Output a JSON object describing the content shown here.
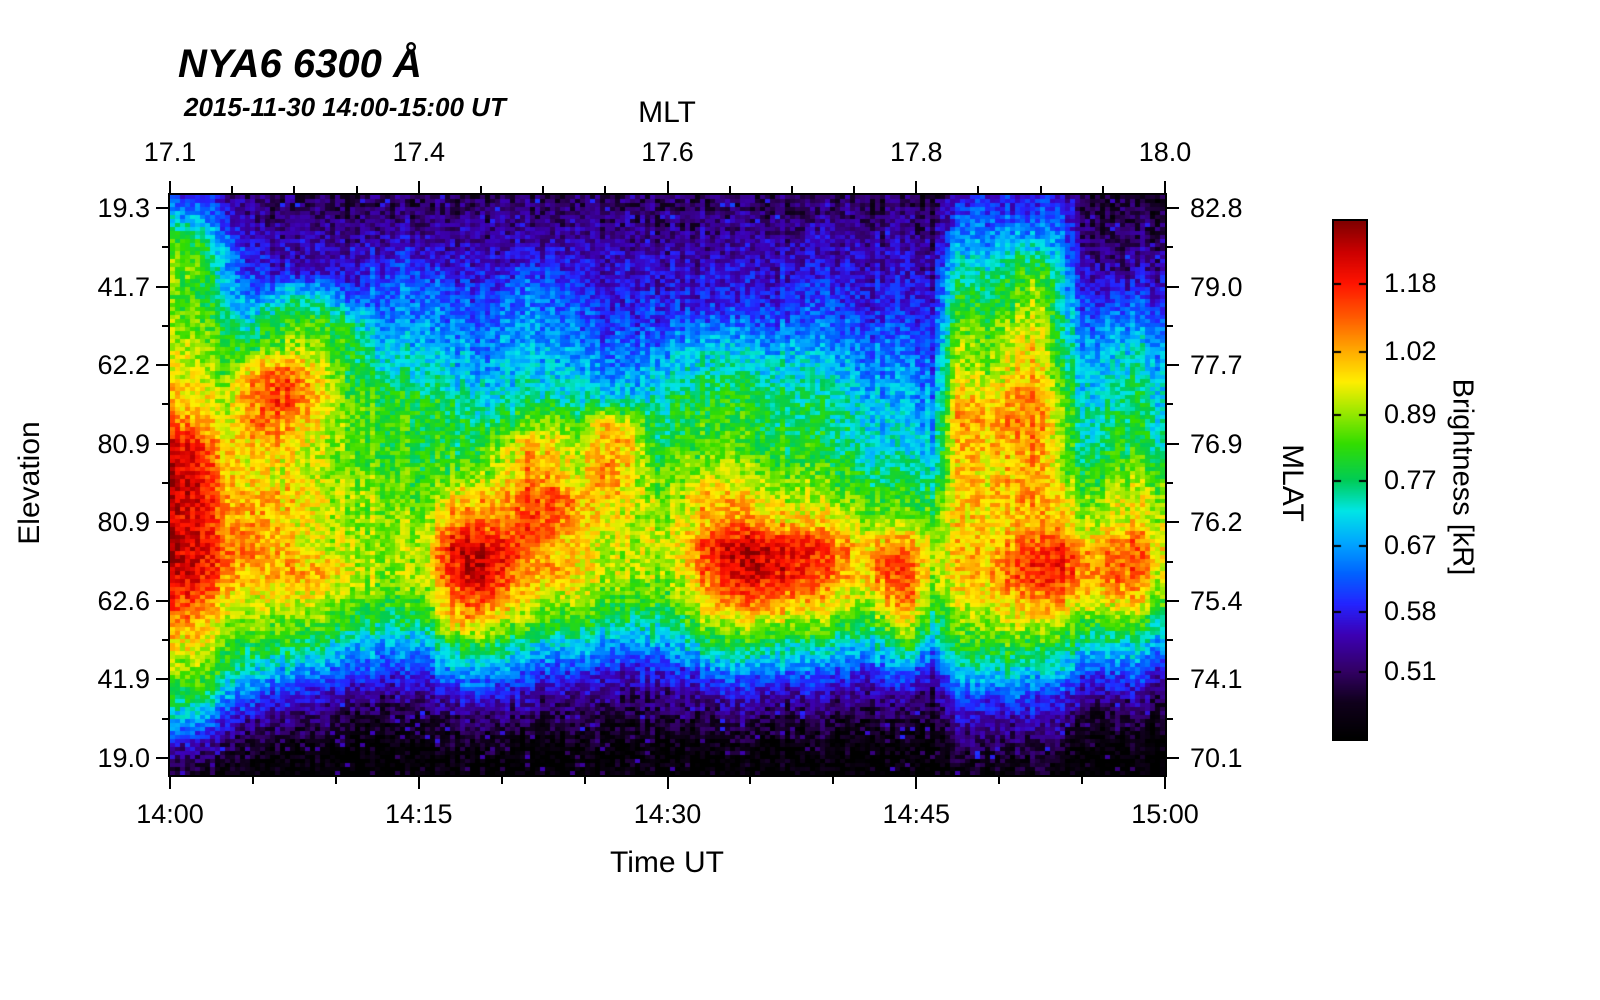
{
  "chart_data": {
    "type": "heatmap",
    "title": "NYA6 6300 Å",
    "subtitle": "2015-11-30 14:00-15:00 UT",
    "x_axis": {
      "label": "Time UT",
      "ticks": [
        "14:00",
        "14:15",
        "14:30",
        "14:45",
        "15:00"
      ]
    },
    "x_axis_top": {
      "label": "MLT",
      "ticks": [
        "17.1",
        "17.4",
        "17.6",
        "17.8",
        "18.0"
      ]
    },
    "y_axis_left": {
      "label": "Elevation",
      "ticks": [
        "19.3",
        "41.7",
        "62.2",
        "80.9",
        "80.9",
        "62.6",
        "41.9",
        "19.0"
      ]
    },
    "y_axis_right": {
      "label": "MLAT",
      "ticks": [
        "82.8",
        "79.0",
        "77.7",
        "76.9",
        "76.2",
        "75.4",
        "74.1",
        "70.1"
      ]
    },
    "colorbar": {
      "label": "Brightness [kR]",
      "tick_values": [
        "1.18",
        "1.02",
        "0.89",
        "0.77",
        "0.67",
        "0.58",
        "0.51"
      ],
      "scale": "log",
      "vmin_kR": 0.44,
      "vmax_kR": 1.35,
      "colormap_stops": [
        [
          0.0,
          "#000000"
        ],
        [
          0.07,
          "#10001c"
        ],
        [
          0.13,
          "#320064"
        ],
        [
          0.2,
          "#3c00b4"
        ],
        [
          0.26,
          "#2424ff"
        ],
        [
          0.32,
          "#0064ff"
        ],
        [
          0.38,
          "#00a8ff"
        ],
        [
          0.44,
          "#00e6e6"
        ],
        [
          0.5,
          "#00cc55"
        ],
        [
          0.57,
          "#33dd00"
        ],
        [
          0.63,
          "#99e800"
        ],
        [
          0.69,
          "#ffee00"
        ],
        [
          0.75,
          "#ffaa00"
        ],
        [
          0.81,
          "#ff6000"
        ],
        [
          0.88,
          "#ff1400"
        ],
        [
          0.94,
          "#cc0000"
        ],
        [
          1.0,
          "#800000"
        ]
      ]
    },
    "grid": {
      "cols": 40,
      "rows": 24,
      "col_span_minutes": 1.5,
      "row_order": "top-to-bottom",
      "values_kR": [
        [
          0.6,
          0.58,
          0.55,
          0.52,
          0.5,
          0.5,
          0.5,
          0.5,
          0.5,
          0.5,
          0.5,
          0.5,
          0.5,
          0.5,
          0.5,
          0.5,
          0.5,
          0.5,
          0.5,
          0.5,
          0.5,
          0.5,
          0.5,
          0.5,
          0.5,
          0.5,
          0.5,
          0.5,
          0.5,
          0.5,
          0.48,
          0.58,
          0.58,
          0.58,
          0.58,
          0.58,
          0.48,
          0.48,
          0.48,
          0.48
        ],
        [
          0.72,
          0.68,
          0.6,
          0.55,
          0.52,
          0.52,
          0.52,
          0.52,
          0.53,
          0.53,
          0.52,
          0.52,
          0.52,
          0.52,
          0.52,
          0.52,
          0.52,
          0.52,
          0.52,
          0.52,
          0.52,
          0.52,
          0.52,
          0.52,
          0.52,
          0.52,
          0.52,
          0.52,
          0.52,
          0.52,
          0.5,
          0.62,
          0.62,
          0.63,
          0.62,
          0.62,
          0.5,
          0.5,
          0.5,
          0.5
        ],
        [
          0.85,
          0.8,
          0.68,
          0.58,
          0.55,
          0.54,
          0.54,
          0.54,
          0.56,
          0.57,
          0.56,
          0.54,
          0.54,
          0.54,
          0.55,
          0.55,
          0.54,
          0.54,
          0.54,
          0.54,
          0.54,
          0.54,
          0.54,
          0.54,
          0.54,
          0.55,
          0.55,
          0.54,
          0.54,
          0.54,
          0.52,
          0.68,
          0.68,
          0.7,
          0.72,
          0.66,
          0.52,
          0.52,
          0.52,
          0.52
        ],
        [
          0.88,
          0.82,
          0.7,
          0.6,
          0.57,
          0.56,
          0.56,
          0.57,
          0.6,
          0.62,
          0.6,
          0.58,
          0.57,
          0.58,
          0.6,
          0.6,
          0.57,
          0.56,
          0.56,
          0.56,
          0.56,
          0.56,
          0.56,
          0.56,
          0.56,
          0.57,
          0.57,
          0.56,
          0.56,
          0.56,
          0.54,
          0.75,
          0.74,
          0.78,
          0.85,
          0.7,
          0.54,
          0.54,
          0.54,
          0.54
        ],
        [
          0.85,
          0.8,
          0.72,
          0.65,
          0.7,
          0.74,
          0.7,
          0.62,
          0.62,
          0.64,
          0.64,
          0.62,
          0.6,
          0.62,
          0.64,
          0.63,
          0.6,
          0.58,
          0.58,
          0.58,
          0.58,
          0.58,
          0.58,
          0.58,
          0.58,
          0.6,
          0.6,
          0.58,
          0.58,
          0.58,
          0.56,
          0.8,
          0.78,
          0.82,
          0.9,
          0.72,
          0.58,
          0.6,
          0.6,
          0.58
        ],
        [
          0.88,
          0.84,
          0.78,
          0.72,
          0.8,
          0.85,
          0.8,
          0.78,
          0.66,
          0.66,
          0.66,
          0.64,
          0.62,
          0.64,
          0.66,
          0.65,
          0.62,
          0.6,
          0.6,
          0.6,
          0.62,
          0.63,
          0.63,
          0.62,
          0.62,
          0.63,
          0.62,
          0.6,
          0.6,
          0.6,
          0.58,
          0.85,
          0.82,
          0.88,
          0.95,
          0.75,
          0.62,
          0.65,
          0.66,
          0.62
        ],
        [
          0.92,
          0.88,
          0.82,
          0.8,
          0.85,
          0.9,
          0.85,
          0.82,
          0.72,
          0.7,
          0.7,
          0.68,
          0.65,
          0.66,
          0.68,
          0.68,
          0.65,
          0.63,
          0.63,
          0.64,
          0.68,
          0.7,
          0.7,
          0.68,
          0.68,
          0.68,
          0.66,
          0.64,
          0.63,
          0.63,
          0.6,
          0.9,
          0.85,
          0.92,
          0.98,
          0.78,
          0.66,
          0.7,
          0.72,
          0.65
        ],
        [
          0.95,
          0.9,
          0.85,
          1.0,
          1.1,
          1.05,
          0.9,
          0.8,
          0.76,
          0.74,
          0.72,
          0.7,
          0.68,
          0.68,
          0.7,
          0.7,
          0.68,
          0.66,
          0.66,
          0.68,
          0.72,
          0.75,
          0.74,
          0.72,
          0.72,
          0.72,
          0.7,
          0.66,
          0.66,
          0.66,
          0.62,
          0.92,
          0.88,
          0.95,
          1.0,
          0.8,
          0.68,
          0.72,
          0.75,
          0.68
        ],
        [
          1.0,
          0.95,
          0.9,
          1.05,
          1.15,
          1.1,
          0.95,
          0.85,
          0.82,
          0.8,
          0.8,
          0.76,
          0.72,
          0.72,
          0.74,
          0.74,
          0.72,
          0.7,
          0.7,
          0.72,
          0.78,
          0.8,
          0.8,
          0.78,
          0.76,
          0.76,
          0.74,
          0.7,
          0.68,
          0.68,
          0.64,
          1.0,
          0.95,
          1.02,
          1.05,
          0.85,
          0.7,
          0.75,
          0.78,
          0.7
        ],
        [
          1.1,
          1.0,
          0.92,
          1.05,
          1.1,
          1.0,
          0.92,
          0.86,
          0.84,
          0.82,
          0.8,
          0.78,
          0.76,
          0.78,
          0.85,
          0.9,
          0.8,
          1.0,
          0.92,
          0.75,
          0.8,
          0.82,
          0.82,
          0.8,
          0.78,
          0.78,
          0.76,
          0.72,
          0.7,
          0.7,
          0.66,
          1.05,
          1.0,
          1.05,
          1.08,
          0.88,
          0.72,
          0.78,
          0.8,
          0.72
        ],
        [
          1.25,
          1.15,
          1.0,
          1.0,
          1.0,
          0.95,
          0.9,
          0.86,
          0.84,
          0.82,
          0.8,
          0.8,
          0.8,
          0.9,
          1.0,
          0.98,
          0.9,
          1.02,
          1.0,
          0.8,
          0.82,
          0.84,
          0.84,
          0.82,
          0.8,
          0.8,
          0.78,
          0.74,
          0.72,
          0.72,
          0.68,
          1.0,
          0.98,
          1.02,
          1.05,
          0.88,
          0.74,
          0.8,
          0.82,
          0.74
        ],
        [
          1.3,
          1.2,
          1.02,
          0.95,
          0.95,
          0.92,
          0.9,
          0.88,
          0.86,
          0.84,
          0.82,
          0.84,
          0.86,
          0.92,
          1.05,
          1.0,
          0.9,
          1.08,
          0.95,
          0.85,
          0.88,
          0.9,
          0.9,
          0.88,
          0.86,
          0.85,
          0.82,
          0.78,
          0.76,
          0.76,
          0.72,
          0.98,
          0.95,
          1.0,
          1.02,
          0.9,
          0.78,
          0.85,
          0.88,
          0.8
        ],
        [
          1.3,
          1.2,
          1.05,
          1.0,
          1.02,
          0.98,
          0.92,
          0.9,
          0.88,
          0.86,
          0.85,
          0.95,
          1.0,
          1.0,
          1.1,
          1.15,
          1.0,
          1.0,
          0.95,
          0.88,
          0.9,
          1.05,
          1.0,
          0.95,
          0.92,
          0.9,
          0.88,
          0.84,
          0.82,
          0.82,
          0.78,
          1.0,
          0.98,
          1.02,
          1.05,
          0.95,
          0.85,
          0.92,
          0.95,
          0.88
        ],
        [
          1.25,
          1.18,
          1.05,
          1.05,
          1.0,
          0.95,
          0.92,
          0.9,
          0.88,
          0.88,
          0.9,
          1.05,
          1.1,
          1.05,
          1.15,
          1.1,
          0.98,
          0.95,
          0.92,
          0.9,
          0.92,
          1.0,
          1.05,
          1.05,
          1.0,
          0.98,
          0.95,
          0.9,
          0.88,
          0.88,
          0.84,
          0.98,
          0.96,
          1.0,
          1.0,
          0.98,
          0.9,
          0.95,
          0.98,
          0.9
        ],
        [
          1.3,
          1.22,
          1.1,
          1.08,
          1.02,
          0.96,
          0.92,
          0.92,
          0.9,
          0.9,
          0.92,
          1.2,
          1.28,
          1.18,
          1.1,
          1.0,
          0.95,
          0.92,
          0.92,
          0.92,
          0.95,
          1.15,
          1.25,
          1.28,
          1.25,
          1.18,
          1.12,
          0.98,
          1.05,
          1.08,
          0.88,
          1.0,
          0.98,
          1.05,
          1.12,
          1.15,
          1.0,
          1.08,
          1.12,
          0.95
        ],
        [
          1.28,
          1.2,
          1.08,
          1.0,
          1.0,
          1.02,
          1.0,
          0.94,
          0.9,
          0.9,
          0.92,
          1.18,
          1.28,
          1.15,
          1.0,
          1.05,
          0.95,
          0.92,
          0.9,
          0.9,
          0.92,
          1.1,
          1.22,
          1.25,
          1.22,
          1.15,
          1.08,
          0.95,
          1.1,
          1.15,
          0.88,
          0.98,
          1.0,
          1.1,
          1.18,
          1.18,
          1.02,
          1.12,
          1.1,
          0.92
        ],
        [
          1.15,
          1.1,
          1.0,
          0.95,
          0.95,
          0.95,
          0.92,
          0.88,
          0.85,
          0.84,
          0.86,
          1.05,
          1.15,
          1.05,
          0.95,
          0.92,
          0.9,
          0.86,
          0.84,
          0.84,
          0.86,
          1.0,
          1.08,
          1.1,
          1.08,
          1.02,
          0.98,
          0.9,
          1.0,
          1.1,
          0.82,
          0.95,
          0.95,
          1.0,
          1.05,
          1.05,
          0.95,
          1.0,
          1.0,
          0.85
        ],
        [
          1.05,
          1.0,
          0.92,
          0.88,
          0.88,
          0.86,
          0.84,
          0.8,
          0.78,
          0.77,
          0.78,
          1.0,
          1.0,
          0.9,
          0.85,
          0.82,
          0.8,
          0.77,
          0.75,
          0.75,
          0.78,
          0.88,
          0.92,
          0.92,
          0.9,
          0.88,
          0.85,
          0.8,
          0.85,
          0.95,
          0.74,
          0.88,
          0.88,
          0.92,
          0.92,
          0.9,
          0.82,
          0.85,
          0.85,
          0.75
        ],
        [
          0.95,
          0.92,
          0.85,
          0.8,
          0.78,
          0.76,
          0.74,
          0.7,
          0.68,
          0.67,
          0.68,
          0.78,
          0.8,
          0.76,
          0.72,
          0.7,
          0.68,
          0.66,
          0.65,
          0.66,
          0.68,
          0.75,
          0.78,
          0.76,
          0.75,
          0.73,
          0.72,
          0.68,
          0.72,
          0.8,
          0.64,
          0.8,
          0.8,
          0.82,
          0.8,
          0.78,
          0.7,
          0.72,
          0.72,
          0.64
        ],
        [
          0.88,
          0.85,
          0.78,
          0.72,
          0.68,
          0.66,
          0.64,
          0.61,
          0.6,
          0.59,
          0.6,
          0.66,
          0.68,
          0.65,
          0.62,
          0.6,
          0.59,
          0.58,
          0.57,
          0.58,
          0.59,
          0.63,
          0.65,
          0.64,
          0.63,
          0.62,
          0.61,
          0.59,
          0.61,
          0.62,
          0.56,
          0.7,
          0.7,
          0.72,
          0.7,
          0.68,
          0.6,
          0.62,
          0.62,
          0.56
        ],
        [
          0.8,
          0.76,
          0.68,
          0.62,
          0.58,
          0.56,
          0.55,
          0.53,
          0.52,
          0.52,
          0.52,
          0.56,
          0.58,
          0.56,
          0.54,
          0.53,
          0.52,
          0.52,
          0.51,
          0.52,
          0.52,
          0.54,
          0.55,
          0.55,
          0.54,
          0.54,
          0.53,
          0.52,
          0.53,
          0.54,
          0.5,
          0.6,
          0.6,
          0.62,
          0.6,
          0.58,
          0.52,
          0.54,
          0.54,
          0.5
        ],
        [
          0.68,
          0.64,
          0.58,
          0.54,
          0.52,
          0.5,
          0.49,
          0.48,
          0.48,
          0.48,
          0.48,
          0.5,
          0.51,
          0.5,
          0.49,
          0.48,
          0.48,
          0.48,
          0.47,
          0.48,
          0.48,
          0.49,
          0.5,
          0.49,
          0.49,
          0.48,
          0.48,
          0.47,
          0.48,
          0.48,
          0.46,
          0.54,
          0.54,
          0.55,
          0.54,
          0.52,
          0.47,
          0.48,
          0.48,
          0.46
        ],
        [
          0.55,
          0.53,
          0.5,
          0.48,
          0.47,
          0.46,
          0.46,
          0.45,
          0.45,
          0.45,
          0.45,
          0.46,
          0.46,
          0.46,
          0.45,
          0.45,
          0.45,
          0.45,
          0.45,
          0.45,
          0.45,
          0.45,
          0.46,
          0.45,
          0.45,
          0.45,
          0.45,
          0.44,
          0.45,
          0.45,
          0.44,
          0.49,
          0.49,
          0.5,
          0.49,
          0.48,
          0.44,
          0.45,
          0.45,
          0.44
        ],
        [
          0.48,
          0.47,
          0.46,
          0.45,
          0.44,
          0.44,
          0.44,
          0.44,
          0.44,
          0.44,
          0.44,
          0.44,
          0.44,
          0.44,
          0.44,
          0.44,
          0.44,
          0.44,
          0.44,
          0.44,
          0.44,
          0.44,
          0.44,
          0.44,
          0.44,
          0.44,
          0.44,
          0.44,
          0.44,
          0.44,
          0.43,
          0.46,
          0.46,
          0.46,
          0.46,
          0.45,
          0.43,
          0.44,
          0.44,
          0.43
        ]
      ]
    }
  }
}
